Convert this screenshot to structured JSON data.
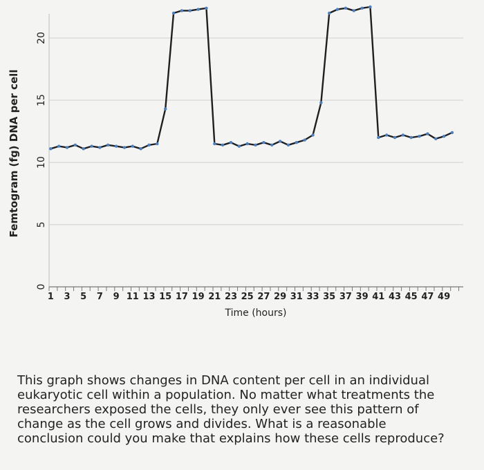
{
  "chart_data": {
    "type": "line",
    "title": "",
    "xlabel": "Time (hours)",
    "ylabel": "Femtogram (fg) DNA per cell",
    "xlim": [
      1,
      50
    ],
    "ylim": [
      0,
      21.5
    ],
    "yticks": [
      0,
      5,
      10,
      15,
      20
    ],
    "xtick_labels": [
      "1",
      "3",
      "5",
      "7",
      "9",
      "11",
      "13",
      "15",
      "17",
      "19",
      "21",
      "23",
      "25",
      "27",
      "29",
      "31",
      "33",
      "35",
      "37",
      "39",
      "41",
      "43",
      "45",
      "47",
      "49"
    ],
    "grid": true,
    "x": [
      1,
      2,
      3,
      4,
      5,
      6,
      7,
      8,
      9,
      10,
      11,
      12,
      13,
      14,
      15,
      16,
      17,
      18,
      19,
      20,
      21,
      22,
      23,
      24,
      25,
      26,
      27,
      28,
      29,
      30,
      31,
      32,
      33,
      34,
      35,
      36,
      37,
      38,
      39,
      40,
      41,
      42,
      43,
      44,
      45,
      46,
      47,
      48,
      49,
      50
    ],
    "series": [
      {
        "values": [
          11.1,
          11.3,
          11.2,
          11.4,
          11.1,
          11.3,
          11.2,
          11.4,
          11.3,
          11.2,
          11.3,
          11.1,
          11.4,
          11.5,
          14.3,
          22.0,
          22.2,
          22.2,
          22.3,
          22.4,
          11.5,
          11.4,
          11.6,
          11.3,
          11.5,
          11.4,
          11.6,
          11.4,
          11.7,
          11.4,
          11.6,
          11.8,
          12.2,
          14.8,
          22.0,
          22.3,
          22.4,
          22.2,
          22.4,
          22.5,
          12.0,
          12.2,
          12.0,
          12.2,
          12.0,
          12.1,
          12.3,
          11.9,
          12.1,
          12.4
        ],
        "color": "#4a7fc1"
      }
    ]
  },
  "question": {
    "lines": [
      "This graph shows changes in DNA content per cell in an individual",
      "eukaryotic cell within a population. No matter what treatments the",
      "researchers exposed the cells, they only ever see this pattern of",
      "change as the cell grows and divides. What is a reasonable",
      "conclusion could you make that explains how these cells reproduce?"
    ]
  }
}
